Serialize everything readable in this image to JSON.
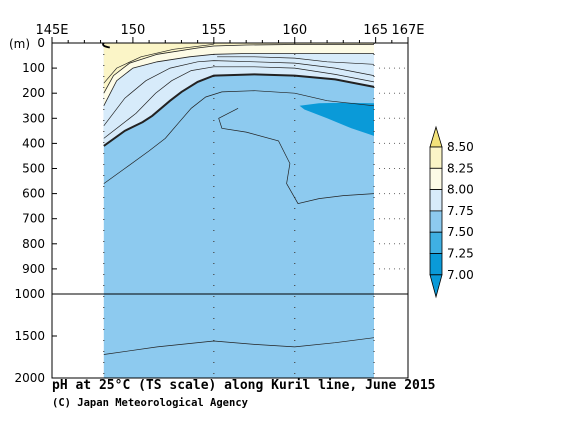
{
  "chart_data": {
    "type": "contour",
    "title": "pH at 25°C (TS scale) along Kuril line, June 2015",
    "credit": "(C) Japan Meteorological Agency",
    "y_unit": "(m)",
    "x_ticks": [
      {
        "value": 145,
        "label": "145E"
      },
      {
        "value": 150,
        "label": "150"
      },
      {
        "value": 155,
        "label": "155"
      },
      {
        "value": 160,
        "label": "160"
      },
      {
        "value": 165,
        "label": "165"
      },
      {
        "value": 167,
        "label": "167E"
      }
    ],
    "y_ticks_upper": [
      0,
      100,
      200,
      300,
      400,
      500,
      600,
      700,
      800,
      900,
      1000
    ],
    "y_ticks_lower": [
      1500,
      2000
    ],
    "xlim": [
      145,
      167
    ],
    "ylim_upper": [
      0,
      1000
    ],
    "ylim_lower": [
      1000,
      2000
    ],
    "stations": [
      148.2,
      155.0,
      160.0,
      164.9
    ],
    "colorbar": {
      "levels": [
        "8.50",
        "8.25",
        "8.00",
        "7.75",
        "7.50",
        "7.25",
        "7.00"
      ],
      "colors": [
        "#f2e27a",
        "#fbf5c7",
        "#fdfbe6",
        "#d7ebfa",
        "#8dcaef",
        "#3fb0e3",
        "#0a9ad8"
      ]
    },
    "colors": {
      "band_7_25_7_50": "#8dcaef",
      "band_7_50_7_75": "#d7ebfa",
      "band_7_75_8_00": "#fdfbe6",
      "band_8_00_8_25": "#fbf5c7",
      "band_7_00_7_25": "#0a9ad8"
    }
  }
}
